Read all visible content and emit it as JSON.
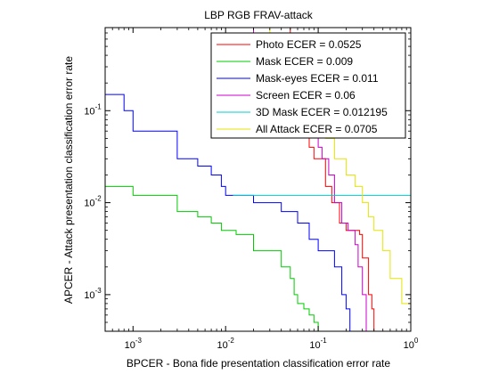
{
  "chart_data": {
    "type": "line",
    "title": "LBP RGB FRAV-attack",
    "xlabel": "BPCER - Bona fide presentation classification error rate",
    "ylabel": "APCER - Attack presentation classification error rate",
    "xscale": "log",
    "yscale": "log",
    "xlim": [
      0.0005,
      1
    ],
    "ylim": [
      0.0004,
      0.8
    ],
    "grid": false,
    "legend_position": "top-right",
    "x_ticks": [
      {
        "value": 0.001,
        "base": "10",
        "exp": "-3"
      },
      {
        "value": 0.01,
        "base": "10",
        "exp": "-2"
      },
      {
        "value": 0.1,
        "base": "10",
        "exp": "-1"
      },
      {
        "value": 1,
        "base": "10",
        "exp": "0"
      }
    ],
    "y_ticks": [
      {
        "value": 0.001,
        "base": "10",
        "exp": "-3"
      },
      {
        "value": 0.01,
        "base": "10",
        "exp": "-2"
      },
      {
        "value": 0.1,
        "base": "10",
        "exp": "-1"
      }
    ],
    "series": [
      {
        "name": "Photo ECER = 0.0525",
        "color": "#ff0000",
        "points": [
          [
            0.0005,
            0.8
          ],
          [
            0.01,
            0.8
          ],
          [
            0.05,
            0.4
          ],
          [
            0.06,
            0.2
          ],
          [
            0.07,
            0.07
          ],
          [
            0.08,
            0.04
          ],
          [
            0.09,
            0.03
          ],
          [
            0.12,
            0.015
          ],
          [
            0.14,
            0.01
          ],
          [
            0.17,
            0.006
          ],
          [
            0.2,
            0.005
          ],
          [
            0.28,
            0.0045
          ],
          [
            0.3,
            0.0025
          ],
          [
            0.35,
            0.001
          ],
          [
            0.38,
            0.0007
          ],
          [
            0.4,
            0.0004
          ]
        ]
      },
      {
        "name": "Mask ECER = 0.009",
        "color": "#00cc00",
        "points": [
          [
            0.0005,
            0.015
          ],
          [
            0.001,
            0.012
          ],
          [
            0.003,
            0.008
          ],
          [
            0.005,
            0.007
          ],
          [
            0.007,
            0.006
          ],
          [
            0.009,
            0.005
          ],
          [
            0.013,
            0.0045
          ],
          [
            0.02,
            0.003
          ],
          [
            0.04,
            0.002
          ],
          [
            0.05,
            0.0015
          ],
          [
            0.055,
            0.001
          ],
          [
            0.06,
            0.0008
          ],
          [
            0.07,
            0.0007
          ],
          [
            0.08,
            0.0006
          ],
          [
            0.09,
            0.0005
          ],
          [
            0.1,
            0.0004
          ]
        ]
      },
      {
        "name": "Mask-eyes ECER = 0.011",
        "color": "#0000ff",
        "points": [
          [
            0.0005,
            0.15
          ],
          [
            0.0008,
            0.1
          ],
          [
            0.001,
            0.06
          ],
          [
            0.003,
            0.03
          ],
          [
            0.005,
            0.025
          ],
          [
            0.007,
            0.02
          ],
          [
            0.009,
            0.015
          ],
          [
            0.01,
            0.012
          ],
          [
            0.02,
            0.01
          ],
          [
            0.04,
            0.008
          ],
          [
            0.06,
            0.006
          ],
          [
            0.08,
            0.004
          ],
          [
            0.1,
            0.003
          ],
          [
            0.15,
            0.002
          ],
          [
            0.18,
            0.001
          ],
          [
            0.2,
            0.0007
          ],
          [
            0.22,
            0.0004
          ]
        ]
      },
      {
        "name": "Screen ECER = 0.06",
        "color": "#cc00cc",
        "points": [
          [
            0.0005,
            0.8
          ],
          [
            0.01,
            0.8
          ],
          [
            0.02,
            0.6
          ],
          [
            0.04,
            0.4
          ],
          [
            0.06,
            0.2
          ],
          [
            0.08,
            0.06
          ],
          [
            0.1,
            0.04
          ],
          [
            0.11,
            0.03
          ],
          [
            0.13,
            0.02
          ],
          [
            0.15,
            0.01
          ],
          [
            0.18,
            0.006
          ],
          [
            0.21,
            0.005
          ],
          [
            0.25,
            0.0035
          ],
          [
            0.27,
            0.002
          ],
          [
            0.3,
            0.001
          ],
          [
            0.33,
            0.0004
          ]
        ]
      },
      {
        "name": "3D Mask ECER = 0.012195",
        "color": "#00cccc",
        "points": [
          [
            0.012,
            0.012
          ],
          [
            1,
            0.012
          ]
        ]
      },
      {
        "name": "All Attack ECER = 0.0705",
        "color": "#e6e600",
        "points": [
          [
            0.0005,
            0.8
          ],
          [
            0.01,
            0.8
          ],
          [
            0.03,
            0.6
          ],
          [
            0.07,
            0.25
          ],
          [
            0.1,
            0.08
          ],
          [
            0.12,
            0.05
          ],
          [
            0.15,
            0.03
          ],
          [
            0.2,
            0.02
          ],
          [
            0.25,
            0.015
          ],
          [
            0.3,
            0.01
          ],
          [
            0.35,
            0.007
          ],
          [
            0.4,
            0.005
          ],
          [
            0.5,
            0.003
          ],
          [
            0.6,
            0.0015
          ],
          [
            0.8,
            0.0008
          ],
          [
            1,
            0.0004
          ]
        ]
      }
    ]
  }
}
